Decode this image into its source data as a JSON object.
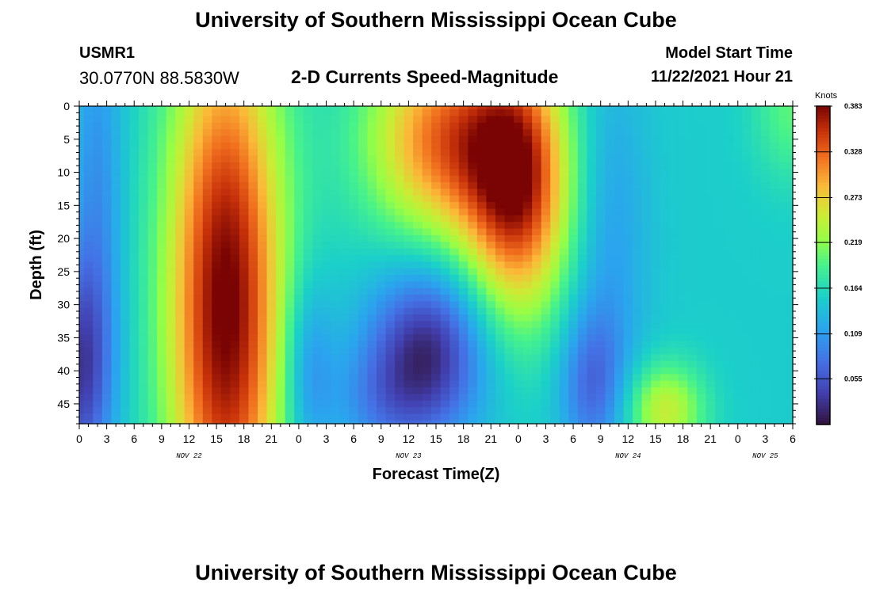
{
  "header": {
    "title": "University of Southern Mississippi Ocean Cube",
    "station_id": "USMR1",
    "station_coords": "30.0770N  88.5830W",
    "subtitle": "2-D Currents Speed-Magnitude",
    "model_start_label": "Model Start Time",
    "model_start_value": "11/22/2021 Hour 21"
  },
  "footer": {
    "title": "University of Southern Mississippi Ocean Cube"
  },
  "chart_data": {
    "type": "heatmap",
    "title": "2-D Currents Speed-Magnitude",
    "xlabel": "Forecast Time(Z)",
    "ylabel": "Depth (ft)",
    "x_range_hours": [
      0,
      78
    ],
    "y_range_ft": [
      0,
      48
    ],
    "y_inverted": true,
    "x_tick_labels": [
      "0",
      "3",
      "6",
      "9",
      "12",
      "15",
      "18",
      "21",
      "0",
      "3",
      "6",
      "9",
      "12",
      "15",
      "18",
      "21",
      "0",
      "3",
      "6",
      "9",
      "12",
      "15",
      "18",
      "21",
      "0",
      "3",
      "6"
    ],
    "y_tick_values": [
      0,
      5,
      10,
      15,
      20,
      25,
      30,
      35,
      40,
      45
    ],
    "date_labels": [
      {
        "text": "NOV 22",
        "hour": 12
      },
      {
        "text": "NOV 23",
        "hour": 36
      },
      {
        "text": "NOV 24",
        "hour": 60
      },
      {
        "text": "NOV 25",
        "hour": 75
      }
    ],
    "colorbar": {
      "unit": "Knots",
      "min": 0,
      "max": 0.383,
      "tick_labels": [
        "0.383",
        "0.328",
        "0.273",
        "0.219",
        "0.164",
        "0.109",
        "0.055"
      ],
      "tick_values": [
        0.383,
        0.328,
        0.273,
        0.219,
        0.164,
        0.109,
        0.055
      ]
    },
    "field": {
      "grid": {
        "nx": 79,
        "ny": 49,
        "dx_hours": 1,
        "dy_ft": 1
      },
      "base": 0.15,
      "features": [
        {
          "t": 16,
          "d": 30,
          "amp": 0.24,
          "st": 4.5,
          "sd": 30
        },
        {
          "t": 0,
          "d": 40,
          "amp": -0.11,
          "st": 2.5,
          "sd": 12
        },
        {
          "t": 2,
          "d": 12,
          "amp": -0.05,
          "st": 2,
          "sd": 20
        },
        {
          "t": 25,
          "d": 40,
          "amp": -0.06,
          "st": 2,
          "sd": 10
        },
        {
          "t": 40,
          "d": 5,
          "amp": 0.17,
          "st": 6,
          "sd": 11
        },
        {
          "t": 48,
          "d": 12,
          "amp": 0.2,
          "st": 4,
          "sd": 14
        },
        {
          "t": 38,
          "d": 37,
          "amp": -0.13,
          "st": 4.5,
          "sd": 9
        },
        {
          "t": 33,
          "d": 45,
          "amp": -0.04,
          "st": 4,
          "sd": 6
        },
        {
          "t": 56,
          "d": 42,
          "amp": -0.07,
          "st": 2.5,
          "sd": 8
        },
        {
          "t": 64,
          "d": 46,
          "amp": 0.1,
          "st": 3,
          "sd": 5
        },
        {
          "t": 58,
          "d": 20,
          "amp": -0.04,
          "st": 3,
          "sd": 20
        },
        {
          "t": 78,
          "d": 0,
          "amp": 0.05,
          "st": 3,
          "sd": 8
        }
      ]
    }
  }
}
